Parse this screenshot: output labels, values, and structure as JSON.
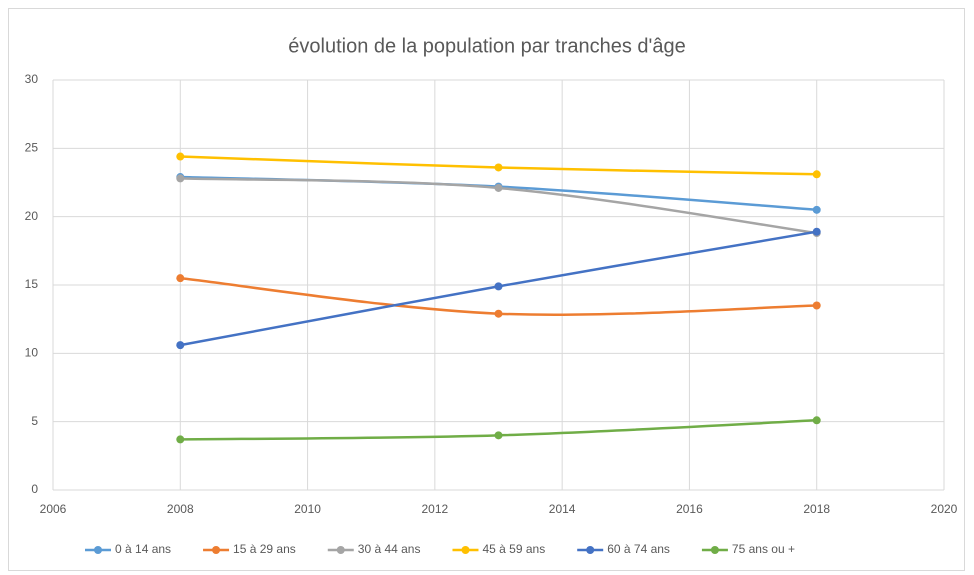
{
  "chart_data": {
    "type": "line",
    "title": "évolution de la population par tranches d'âge",
    "x": [
      2008,
      2013,
      2018
    ],
    "series": [
      {
        "name": "0 à 14 ans",
        "color": "#5b9bd5",
        "values": [
          22.9,
          22.2,
          20.5
        ]
      },
      {
        "name": "15 à 29 ans",
        "color": "#ed7d31",
        "values": [
          15.5,
          12.9,
          13.5
        ]
      },
      {
        "name": "30 à 44 ans",
        "color": "#a5a5a5",
        "values": [
          22.8,
          22.1,
          18.8
        ]
      },
      {
        "name": "45 à 59 ans",
        "color": "#ffc000",
        "values": [
          24.4,
          23.6,
          23.1
        ]
      },
      {
        "name": "60 à 74 ans",
        "color": "#4472c4",
        "values": [
          10.6,
          14.9,
          18.9
        ]
      },
      {
        "name": "75 ans ou +",
        "color": "#70ad47",
        "values": [
          3.7,
          4.0,
          5.1
        ]
      }
    ],
    "xlim": [
      2006,
      2020
    ],
    "xticks": [
      2006,
      2008,
      2010,
      2012,
      2014,
      2016,
      2018,
      2020
    ],
    "ylim": [
      0,
      30
    ],
    "yticks": [
      0,
      5,
      10,
      15,
      20,
      25,
      30
    ],
    "grid": true,
    "smooth": true,
    "legend": "bottom"
  }
}
